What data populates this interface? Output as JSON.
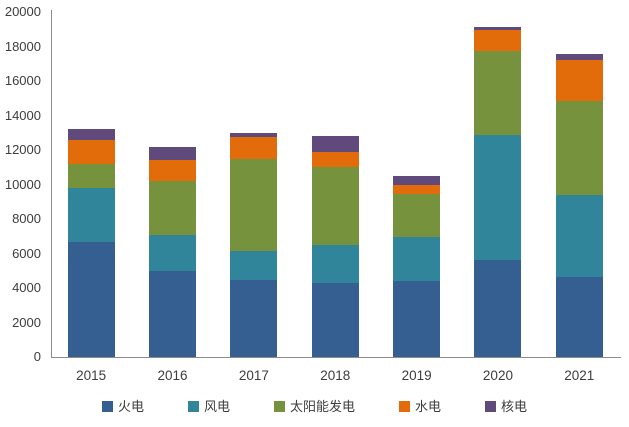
{
  "chart_data": {
    "type": "bar",
    "stacked": true,
    "title": "",
    "categories": [
      "2015",
      "2016",
      "2017",
      "2018",
      "2019",
      "2020",
      "2021"
    ],
    "series": [
      {
        "key": "thermal",
        "name": "火电",
        "color": "#365F91",
        "values": [
          6650,
          5000,
          4450,
          4300,
          4400,
          5600,
          4650
        ]
      },
      {
        "key": "wind",
        "name": "风电",
        "color": "#31859B",
        "values": [
          3150,
          2050,
          1700,
          2200,
          2550,
          7250,
          4750
        ]
      },
      {
        "key": "solar",
        "name": "太阳能发电",
        "color": "#76923C",
        "values": [
          1400,
          3150,
          5300,
          4500,
          2500,
          4900,
          5450
        ]
      },
      {
        "key": "hydro",
        "name": "水电",
        "color": "#E36C0A",
        "values": [
          1400,
          1200,
          1300,
          900,
          550,
          1200,
          2350
        ]
      },
      {
        "key": "nuclear",
        "name": "核电",
        "color": "#604A7B",
        "values": [
          600,
          750,
          250,
          900,
          500,
          200,
          350
        ]
      }
    ],
    "stack_totals": [
      13200,
      12150,
      13000,
      12800,
      10500,
      19150,
      17550
    ],
    "xlabel": "",
    "ylabel": "",
    "ylim": [
      0,
      20000
    ],
    "ytick_step": 2000,
    "ytick_labels": [
      "0",
      "2000",
      "4000",
      "6000",
      "8000",
      "10000",
      "12000",
      "14000",
      "16000",
      "18000",
      "20000"
    ],
    "grid": false,
    "legend_position": "bottom",
    "axis_color": "#8C8C8C",
    "text_color": "#3D3D3D",
    "background_color": "#FFFFFF"
  }
}
